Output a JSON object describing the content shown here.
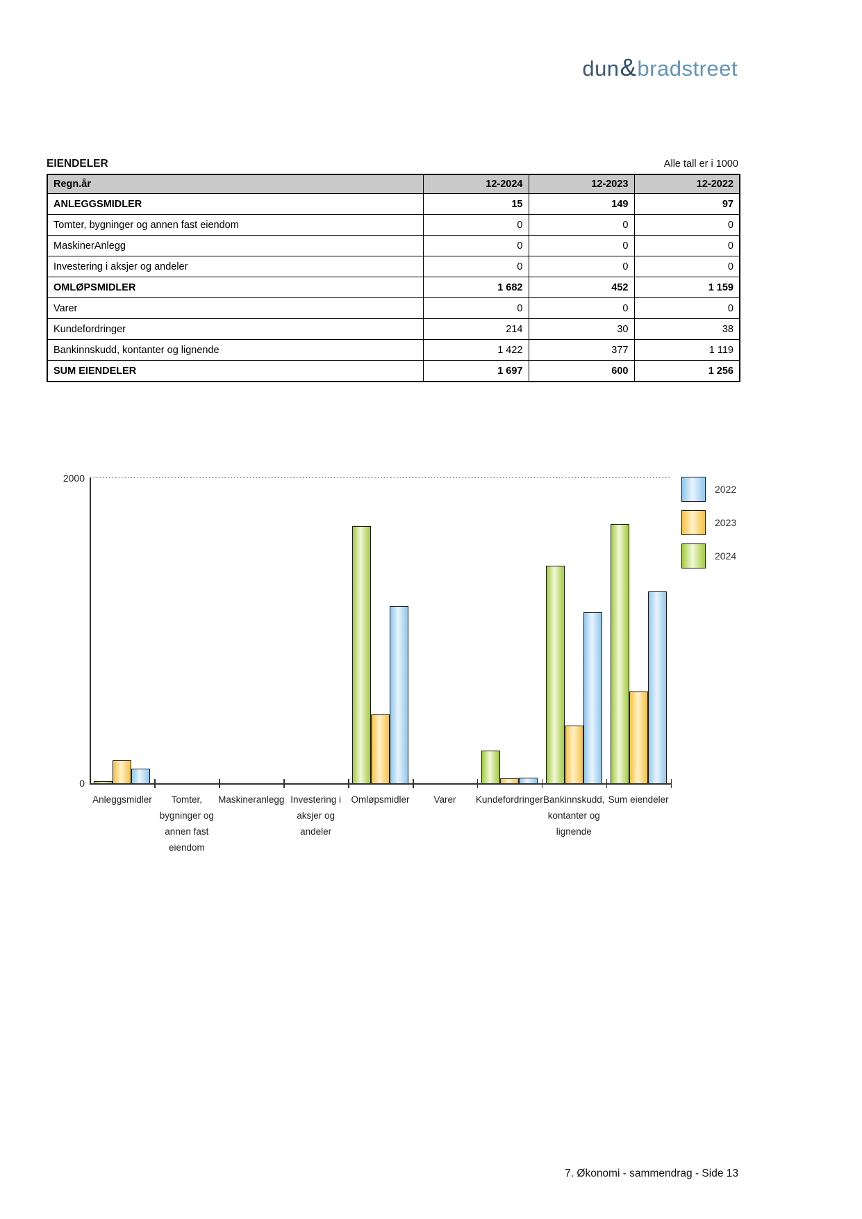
{
  "logo": {
    "dun": "dun",
    "ampersand": "&",
    "bradstreet": "bradstreet"
  },
  "header": {
    "title": "EIENDELER",
    "note": "Alle tall er i 1000"
  },
  "table": {
    "columns": [
      "Regn.år",
      "12-2024",
      "12-2023",
      "12-2022"
    ],
    "rows": [
      {
        "label": "ANLEGGSMIDLER",
        "values": [
          "15",
          "149",
          "97"
        ],
        "bold": true
      },
      {
        "label": "Tomter, bygninger og annen fast eiendom",
        "values": [
          "0",
          "0",
          "0"
        ],
        "bold": false
      },
      {
        "label": "MaskinerAnlegg",
        "values": [
          "0",
          "0",
          "0"
        ],
        "bold": false
      },
      {
        "label": "Investering i aksjer og andeler",
        "values": [
          "0",
          "0",
          "0"
        ],
        "bold": false
      },
      {
        "label": "OMLØPSMIDLER",
        "values": [
          "1 682",
          "452",
          "1 159"
        ],
        "bold": true
      },
      {
        "label": "Varer",
        "values": [
          "0",
          "0",
          "0"
        ],
        "bold": false
      },
      {
        "label": "Kundefordringer",
        "values": [
          "214",
          "30",
          "38"
        ],
        "bold": false
      },
      {
        "label": "Bankinnskudd, kontanter og lignende",
        "values": [
          "1 422",
          "377",
          "1 119"
        ],
        "bold": false
      },
      {
        "label": "SUM EIENDELER",
        "values": [
          "1 697",
          "600",
          "1 256"
        ],
        "bold": true
      }
    ]
  },
  "chart_data": {
    "type": "bar",
    "title": "",
    "xlabel": "",
    "ylabel": "",
    "ylim": [
      0,
      2000
    ],
    "ylabels": [
      "2000",
      "0"
    ],
    "grid": "dotted line at y=2000 only",
    "legend_position": "top-right",
    "categories": [
      "Anleggsmidler",
      "Tomter, bygninger og annen fast eiendom",
      "Maskineranlegg",
      "Investering i aksjer og andeler",
      "Omløpsmidler",
      "Varer",
      "Kundefordringer",
      "Bankinnskudd, kontanter og lignende",
      "Sum eiendeler"
    ],
    "category_label_lines": [
      [
        "Anleggsmidler"
      ],
      [
        "Tomter,",
        "bygninger og",
        "annen fast",
        "eiendom"
      ],
      [
        "Maskineranlegg"
      ],
      [
        "Investering i",
        "aksjer og",
        "andeler"
      ],
      [
        "Omløpsmidler"
      ],
      [
        "Varer"
      ],
      [
        "Kundefordringer"
      ],
      [
        "Bankinnskudd,",
        "kontanter og",
        "lignende"
      ],
      [
        "Sum eiendeler"
      ]
    ],
    "series": [
      {
        "name": "2024",
        "color_edge": "#a3cb3b",
        "color_mid": "#f1f8dc",
        "values": [
          15,
          0,
          0,
          0,
          1682,
          0,
          214,
          1422,
          1697
        ]
      },
      {
        "name": "2023",
        "color_edge": "#f6c143",
        "color_mid": "#fdf1ca",
        "values": [
          149,
          0,
          0,
          0,
          452,
          0,
          30,
          377,
          600
        ]
      },
      {
        "name": "2022",
        "color_edge": "#90c7ee",
        "color_mid": "#e9f4fc",
        "values": [
          97,
          0,
          0,
          0,
          1159,
          0,
          38,
          1119,
          1256
        ]
      }
    ],
    "legend": [
      {
        "name": "2022",
        "color_edge": "#90c7ee",
        "color_mid": "#e9f4fc"
      },
      {
        "name": "2023",
        "color_edge": "#f6c143",
        "color_mid": "#fdf1ca"
      },
      {
        "name": "2024",
        "color_edge": "#a3cb3b",
        "color_mid": "#f1f8dc"
      }
    ]
  },
  "footer": {
    "text": "7. Økonomi - sammendrag - Side 13"
  }
}
